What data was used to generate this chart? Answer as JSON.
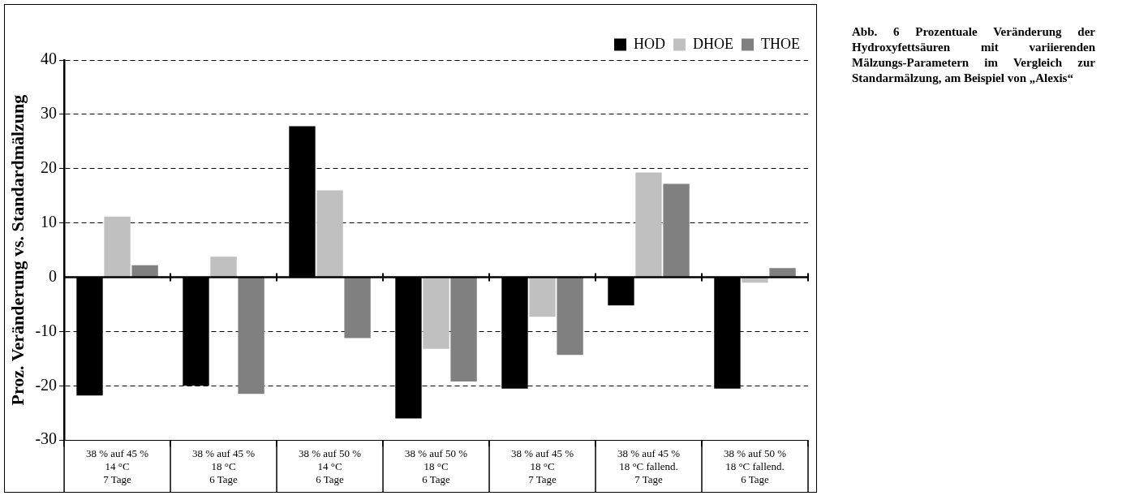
{
  "chart_data": {
    "type": "bar",
    "title": "Abb. 6  Prozentuale Veränderung der Hydroxyfettsäuren mit variierenden Mälzungs-Parametern im Vergleich zur Standarmälzung, am Beispiel von „Alexis“",
    "ylabel": "Proz. Veränderung vs. Standardmälzung",
    "categories": [
      "38 % auf 45 %\n14 °C\n7 Tage",
      "38 % auf 45 %\n18 °C\n6 Tage",
      "38 % auf 50 %\n14 °C\n6 Tage",
      "38 % auf 50 %\n18 °C\n6 Tage",
      "38 % auf 45 %\n18 °C\n7 Tage",
      "38 % auf 45 %\n18 °C fallend.\n7 Tage",
      "38 % auf 50 %\n18 °C fallend.\n6 Tage"
    ],
    "series": [
      {
        "name": "HOD",
        "color": "#000000",
        "values": [
          -21.8,
          -20,
          27.8,
          -26,
          -20.5,
          -5.2,
          -20.5
        ]
      },
      {
        "name": "DHOE",
        "color": "#c0c0c0",
        "values": [
          11.2,
          3.8,
          16,
          -13.2,
          -7.3,
          19.3,
          -1
        ]
      },
      {
        "name": "THOE",
        "color": "#808080",
        "values": [
          2.2,
          -21.5,
          -11.2,
          -19.2,
          -14.3,
          17.2,
          1.7
        ]
      }
    ],
    "ylim": [
      -30,
      40
    ],
    "yticks": [
      -30,
      -20,
      -10,
      0,
      10,
      20,
      30,
      40
    ],
    "grid": "y",
    "legend": "top right"
  }
}
